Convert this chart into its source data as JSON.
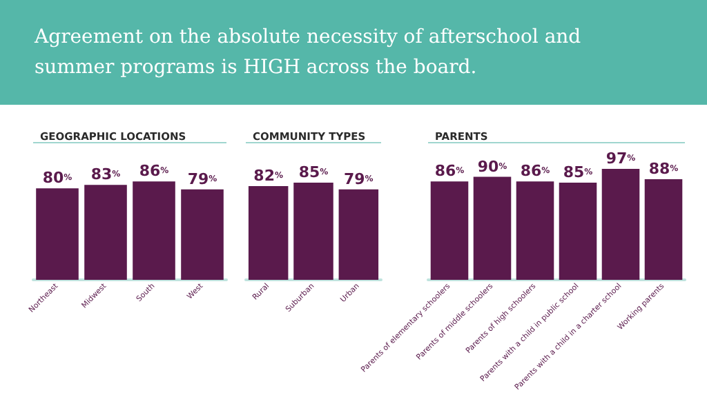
{
  "chart_data": [
    {
      "type": "bar",
      "title": "GEOGRAPHIC LOCATIONS",
      "annotations": [
        "Agreement on the absolute necessity of afterschool and summer programs is HIGH across the board."
      ],
      "categories": [
        "Northeast",
        "Midwest",
        "South",
        "West"
      ],
      "values": [
        80,
        83,
        86,
        79
      ],
      "value_labels": [
        "80%",
        "83%",
        "86%",
        "79%"
      ],
      "color": "#5a1a4c"
    },
    {
      "type": "bar",
      "title": "COMMUNITY TYPES",
      "categories": [
        "Rural",
        "Suburban",
        "Urban"
      ],
      "values": [
        82,
        85,
        79
      ],
      "value_labels": [
        "82%",
        "85%",
        "79%"
      ],
      "color": "#5a1a4c"
    },
    {
      "type": "bar",
      "title": "PARENTS",
      "categories": [
        "Parents of elementary schoolers",
        "Parents of middle schoolers",
        "Parents of high schoolers",
        "Parents with a child in public school",
        "Parents with a child in a charter school",
        "Working parents"
      ],
      "values": [
        86,
        90,
        86,
        85,
        97,
        88
      ],
      "value_labels": [
        "86%",
        "90%",
        "86%",
        "85%",
        "97%",
        "88%"
      ],
      "color": "#5a1a4c"
    }
  ]
}
